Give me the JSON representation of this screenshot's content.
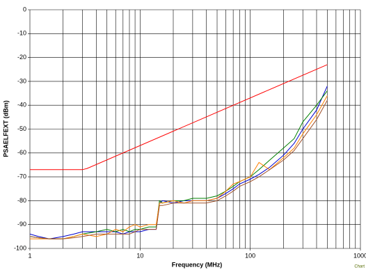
{
  "chart_data": {
    "type": "line",
    "x_label": "Frequency (MHz)",
    "y_label": "PSAELFEXT (dBm)",
    "annotation": "Chart",
    "xscale": "log",
    "xlim": [
      1,
      1000
    ],
    "xticks": [
      1,
      10,
      100,
      1000
    ],
    "ylim": [
      -100,
      0
    ],
    "yticks": [
      0,
      -10,
      -20,
      -30,
      -40,
      -50,
      -60,
      -70,
      -80,
      -90,
      -100
    ],
    "grid": true,
    "minor_grid": true,
    "series": [
      {
        "color": "#0000cc",
        "x": [
          1,
          1.2,
          1.5,
          2,
          2.5,
          3,
          4,
          5,
          6,
          7,
          8,
          9,
          10,
          12,
          14,
          15,
          16,
          20,
          25,
          30,
          40,
          50,
          60,
          70,
          80,
          100,
          120,
          150,
          200,
          250,
          300,
          400,
          500
        ],
        "values": [
          -94,
          -95,
          -96,
          -95,
          -94,
          -93,
          -93,
          -93,
          -93,
          -94,
          -93,
          -93,
          -93,
          -92,
          -92,
          -81,
          -80,
          -81,
          -80,
          -80,
          -80,
          -79,
          -77,
          -75,
          -73,
          -71,
          -69,
          -66,
          -61,
          -56,
          -50,
          -42,
          -32
        ]
      },
      {
        "color": "#008000",
        "x": [
          1,
          1.2,
          1.5,
          2,
          2.5,
          3,
          4,
          5,
          6,
          7,
          8,
          9,
          10,
          12,
          14,
          15,
          16,
          20,
          25,
          30,
          40,
          50,
          60,
          70,
          80,
          100,
          120,
          150,
          200,
          250,
          300,
          400,
          500
        ],
        "values": [
          -95,
          -95.5,
          -96,
          -96,
          -95,
          -94,
          -93,
          -92,
          -93,
          -92,
          -93,
          -92,
          -92,
          -91,
          -91,
          -80,
          -81,
          -80,
          -80,
          -79,
          -79,
          -78,
          -76,
          -74,
          -72,
          -70,
          -67,
          -63,
          -58,
          -54,
          -47,
          -40,
          -34
        ]
      },
      {
        "color": "#ff8000",
        "x": [
          1,
          1.2,
          1.5,
          2,
          2.5,
          3,
          4,
          5,
          6,
          7,
          8,
          9,
          10,
          12,
          14,
          15,
          16,
          20,
          25,
          30,
          40,
          50,
          60,
          70,
          80,
          100,
          120,
          150,
          200,
          250,
          300,
          400,
          500
        ],
        "values": [
          -96,
          -96,
          -96,
          -96,
          -95,
          -94,
          -95,
          -94,
          -92,
          -93,
          -91,
          -90,
          -91,
          -90,
          -90,
          -81,
          -81,
          -80,
          -81,
          -80,
          -80,
          -79,
          -76,
          -73,
          -72,
          -70,
          -64,
          -67,
          -62,
          -58,
          -52,
          -44,
          -36
        ]
      },
      {
        "color": "#a0522d",
        "x": [
          1,
          1.2,
          1.5,
          2,
          2.5,
          3,
          4,
          5,
          6,
          7,
          8,
          9,
          10,
          12,
          14,
          15,
          16,
          20,
          25,
          30,
          40,
          50,
          60,
          70,
          80,
          100,
          120,
          150,
          200,
          250,
          300,
          400,
          500
        ],
        "values": [
          -95,
          -95.5,
          -96,
          -96,
          -95.5,
          -95,
          -94,
          -94,
          -94,
          -94,
          -94,
          -93,
          -92,
          -92,
          -92,
          -82,
          -82,
          -81,
          -81,
          -81,
          -81,
          -80,
          -78,
          -76,
          -74,
          -72,
          -70,
          -67,
          -63,
          -59,
          -54,
          -46,
          -38
        ]
      },
      {
        "color": "#ff0000",
        "x": [
          1,
          3,
          3.3,
          500
        ],
        "values": [
          -67,
          -67,
          -66.5,
          -23
        ]
      }
    ]
  }
}
